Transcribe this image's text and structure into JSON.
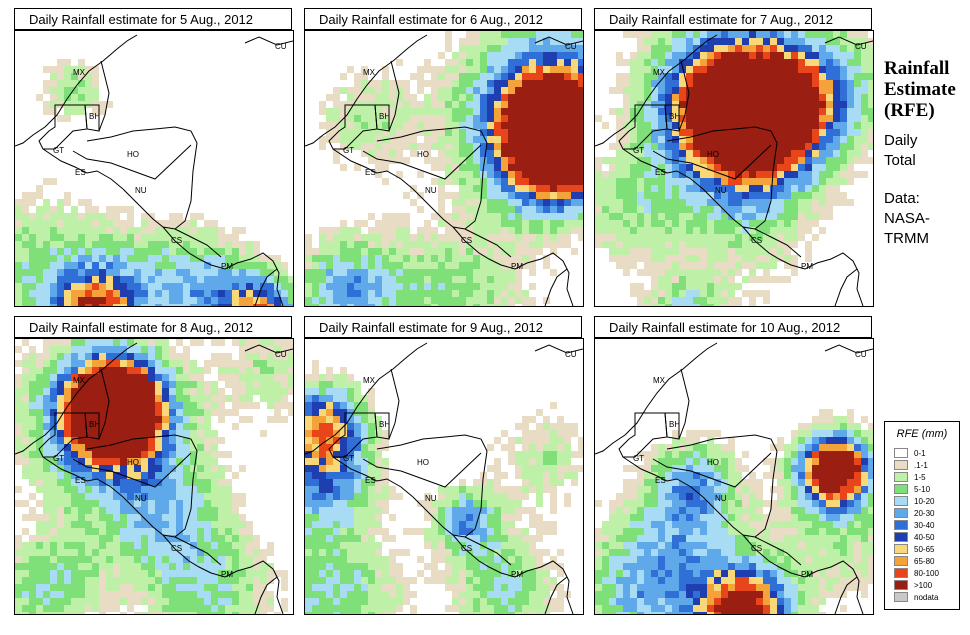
{
  "panels": [
    {
      "title": "Daily Rainfall estimate for  5 Aug., 2012",
      "focus": "scattered-south"
    },
    {
      "title": "Daily Rainfall estimate for  6 Aug., 2012",
      "focus": "northeast-storm"
    },
    {
      "title": "Daily Rainfall estimate for  7 Aug., 2012",
      "focus": "north-storm"
    },
    {
      "title": "Daily Rainfall estimate for  8 Aug., 2012",
      "focus": "yucatan-storm"
    },
    {
      "title": "Daily Rainfall estimate for  9 Aug., 2012",
      "focus": "scattered-west"
    },
    {
      "title": "Daily Rainfall estimate for  10 Aug., 2012",
      "focus": "east-and-south"
    }
  ],
  "countries": {
    "mx": "MX",
    "bh": "BH",
    "gt": "GT",
    "ho": "HO",
    "es": "ES",
    "nu": "NU",
    "cs": "CS",
    "pm": "PM",
    "cu": "CU"
  },
  "side": {
    "title_line1": "Rainfall",
    "title_line2": "Estimate",
    "title_line3": "(RFE)",
    "daily_line1": "Daily",
    "daily_line2": "Total",
    "data_line1": "Data:",
    "data_line2": "NASA-",
    "data_line3": "TRMM"
  },
  "legend": {
    "title": "RFE (mm)",
    "items": [
      {
        "label": "0-1",
        "color": "#ffffff"
      },
      {
        "label": ".1-1",
        "color": "#e8dcc4"
      },
      {
        "label": "1-5",
        "color": "#bff0a8"
      },
      {
        "label": "5-10",
        "color": "#7fe07a"
      },
      {
        "label": "10-20",
        "color": "#a8dcf5"
      },
      {
        "label": "20-30",
        "color": "#5fa8ea"
      },
      {
        "label": "30-40",
        "color": "#2f6fd6"
      },
      {
        "label": "40-50",
        "color": "#1f3fb0"
      },
      {
        "label": "50-65",
        "color": "#f8d878"
      },
      {
        "label": "65-80",
        "color": "#f4a23a"
      },
      {
        "label": "80-100",
        "color": "#e8461a"
      },
      {
        "label": ">100",
        "color": "#9a1e12"
      },
      {
        "label": "nodata",
        "color": "#c8c8c8"
      }
    ]
  }
}
